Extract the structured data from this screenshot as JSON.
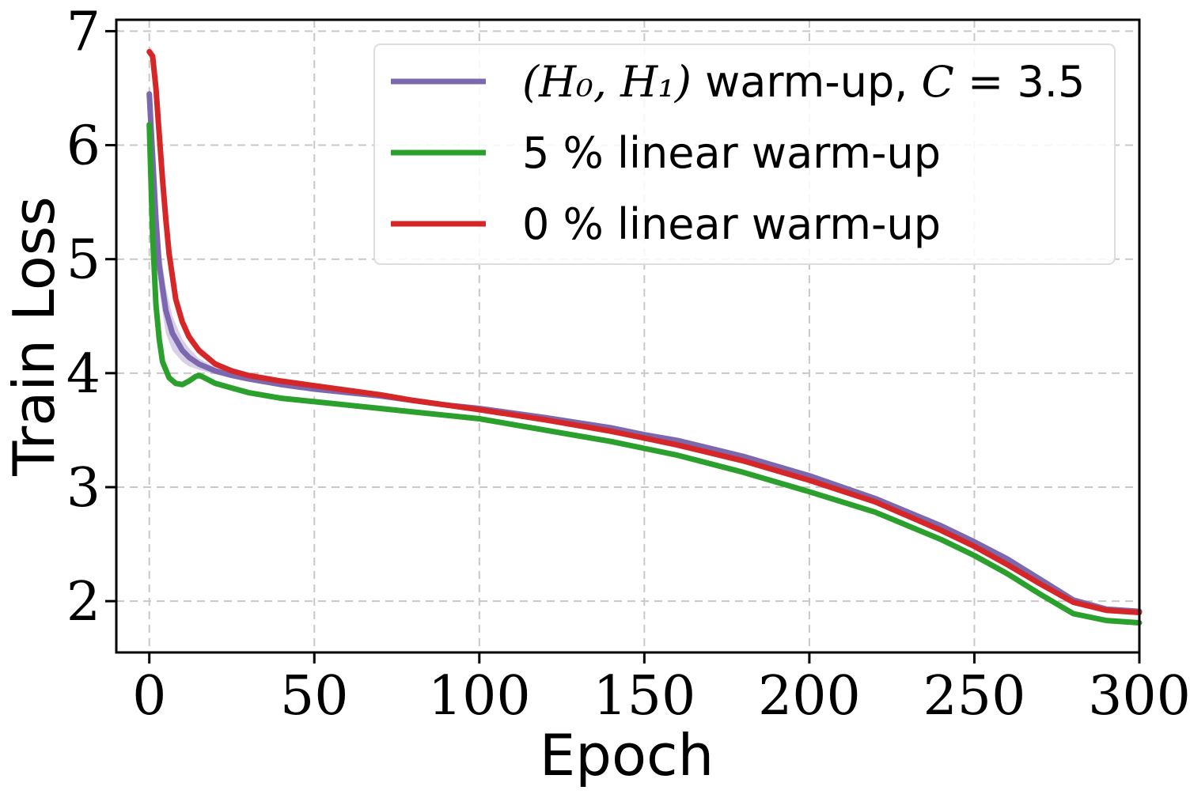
{
  "chart_data": {
    "type": "line",
    "title": "",
    "xlabel": "Epoch",
    "ylabel": "Train Loss",
    "xlim": [
      -10,
      300
    ],
    "ylim": [
      1.55,
      7.1
    ],
    "xticks": [
      0,
      50,
      100,
      150,
      200,
      250,
      300
    ],
    "xtick_labels": [
      "0",
      "50",
      "100",
      "150",
      "200",
      "250",
      "300"
    ],
    "yticks": [
      2,
      3,
      4,
      5,
      6,
      7
    ],
    "ytick_labels": [
      "2",
      "3",
      "4",
      "5",
      "6",
      "7"
    ],
    "grid": true,
    "legend_position": "top-right",
    "series": [
      {
        "name": "(H0, H1) warm-up, C = 3.5",
        "legend_math_text": "(H₀, H₁)",
        "legend_plain_text": " warm-up, ",
        "legend_var_text": "C",
        "legend_eq_text": " = ",
        "legend_value_text": "3.5",
        "color": "#7b68ae",
        "band_color": "#b9aad6",
        "x": [
          0,
          1,
          2,
          3,
          5,
          7,
          10,
          12,
          15,
          20,
          25,
          30,
          40,
          50,
          60,
          70,
          80,
          90,
          100,
          120,
          140,
          150,
          160,
          180,
          200,
          220,
          240,
          250,
          260,
          270,
          280,
          290,
          300
        ],
        "values": [
          6.45,
          5.9,
          5.35,
          4.95,
          4.55,
          4.35,
          4.2,
          4.14,
          4.08,
          4.02,
          3.98,
          3.95,
          3.9,
          3.86,
          3.83,
          3.8,
          3.76,
          3.72,
          3.69,
          3.61,
          3.52,
          3.46,
          3.41,
          3.27,
          3.1,
          2.9,
          2.66,
          2.52,
          2.37,
          2.19,
          2.01,
          1.93,
          1.91
        ],
        "band": [
          0.1,
          0.15,
          0.2,
          0.22,
          0.2,
          0.15,
          0.1,
          0.08,
          0.05,
          0.03,
          0.02,
          0.02,
          0.02,
          0.02,
          0.02,
          0.02,
          0.02,
          0.02,
          0.02,
          0.02,
          0.02,
          0.02,
          0.02,
          0.02,
          0.02,
          0.02,
          0.02,
          0.02,
          0.02,
          0.02,
          0.02,
          0.02,
          0.02
        ]
      },
      {
        "name": "5 % linear warm-up",
        "color": "#2ca02c",
        "band_color": "#8fd08f",
        "x": [
          0,
          1,
          2,
          3,
          4,
          6,
          8,
          10,
          12,
          14,
          15,
          16,
          18,
          20,
          25,
          30,
          40,
          50,
          60,
          70,
          80,
          90,
          100,
          120,
          140,
          150,
          160,
          180,
          200,
          220,
          240,
          250,
          260,
          270,
          280,
          290,
          300
        ],
        "values": [
          6.18,
          5.2,
          4.6,
          4.3,
          4.1,
          3.96,
          3.91,
          3.9,
          3.93,
          3.97,
          3.98,
          3.97,
          3.94,
          3.91,
          3.87,
          3.83,
          3.78,
          3.75,
          3.72,
          3.69,
          3.66,
          3.63,
          3.6,
          3.5,
          3.4,
          3.34,
          3.28,
          3.13,
          2.96,
          2.78,
          2.54,
          2.4,
          2.24,
          2.06,
          1.89,
          1.83,
          1.81
        ],
        "band": [
          0.05,
          0.05,
          0.04,
          0.03,
          0.02,
          0.02,
          0.02,
          0.02,
          0.02,
          0.02,
          0.02,
          0.02,
          0.02,
          0.02,
          0.02,
          0.02,
          0.02,
          0.02,
          0.02,
          0.02,
          0.02,
          0.02,
          0.02,
          0.02,
          0.02,
          0.02,
          0.02,
          0.02,
          0.02,
          0.02,
          0.02,
          0.02,
          0.02,
          0.02,
          0.02,
          0.02,
          0.02
        ]
      },
      {
        "name": "0 % linear warm-up",
        "color": "#d62728",
        "band_color": "#f0a0a0",
        "x": [
          0,
          1,
          2,
          3,
          4,
          5,
          6,
          8,
          10,
          12,
          15,
          20,
          25,
          30,
          40,
          50,
          60,
          70,
          80,
          90,
          100,
          120,
          140,
          150,
          160,
          180,
          200,
          220,
          240,
          250,
          260,
          270,
          280,
          290,
          300
        ],
        "values": [
          6.82,
          6.78,
          6.5,
          6.1,
          5.7,
          5.35,
          5.05,
          4.65,
          4.45,
          4.32,
          4.2,
          4.08,
          4.02,
          3.98,
          3.93,
          3.89,
          3.85,
          3.81,
          3.76,
          3.72,
          3.68,
          3.59,
          3.49,
          3.43,
          3.37,
          3.23,
          3.06,
          2.87,
          2.62,
          2.48,
          2.32,
          2.15,
          1.99,
          1.92,
          1.9
        ],
        "band": [
          0.05,
          0.05,
          0.08,
          0.12,
          0.15,
          0.15,
          0.12,
          0.08,
          0.06,
          0.05,
          0.04,
          0.03,
          0.02,
          0.02,
          0.02,
          0.02,
          0.02,
          0.02,
          0.02,
          0.02,
          0.02,
          0.02,
          0.02,
          0.02,
          0.02,
          0.02,
          0.02,
          0.02,
          0.02,
          0.02,
          0.02,
          0.02,
          0.02,
          0.02,
          0.02
        ]
      }
    ]
  }
}
